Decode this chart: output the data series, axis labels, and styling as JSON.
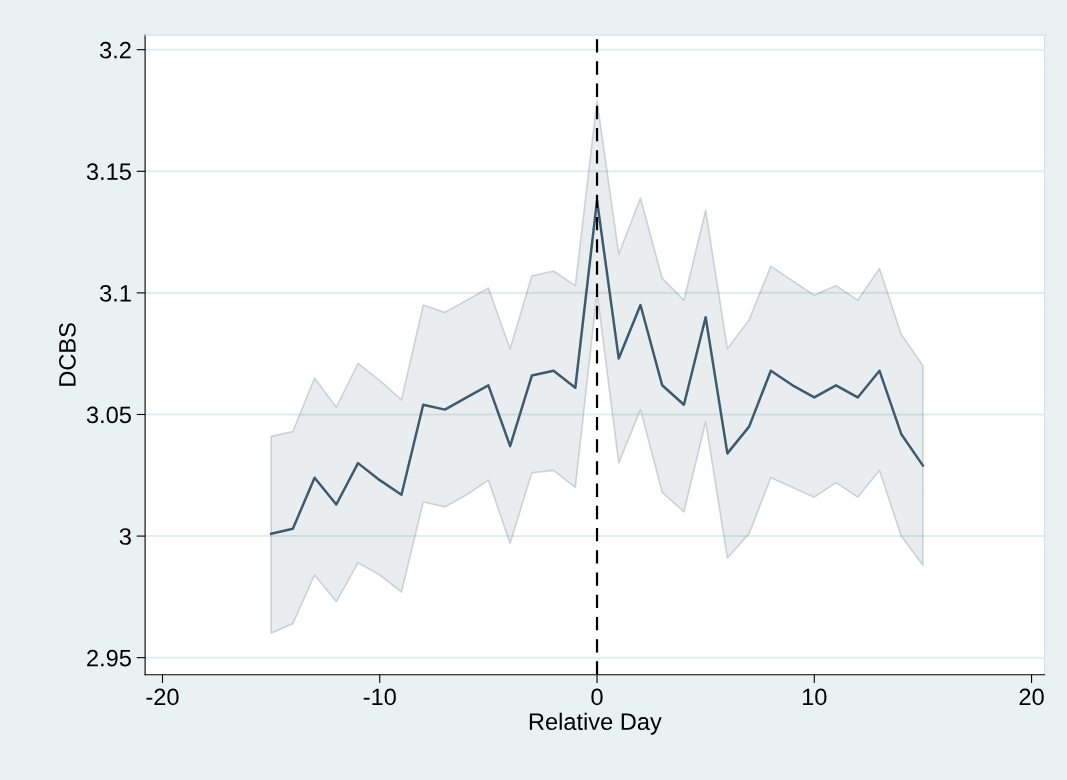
{
  "chart_data": {
    "type": "line",
    "xlabel": "Relative Day",
    "ylabel": "DCBS",
    "x": [
      -15,
      -14,
      -13,
      -12,
      -11,
      -10,
      -9,
      -8,
      -7,
      -6,
      -5,
      -4,
      -3,
      -2,
      -1,
      0,
      1,
      2,
      3,
      4,
      5,
      6,
      7,
      8,
      9,
      10,
      11,
      12,
      13,
      14,
      15
    ],
    "series": [
      {
        "color": "#3d5a6e",
        "values": [
          3.001,
          3.003,
          3.024,
          3.013,
          3.03,
          3.023,
          3.017,
          3.054,
          3.052,
          3.057,
          3.062,
          3.037,
          3.066,
          3.068,
          3.061,
          3.138,
          3.073,
          3.095,
          3.062,
          3.054,
          3.09,
          3.034,
          3.045,
          3.068,
          3.062,
          3.057,
          3.062,
          3.057,
          3.068,
          3.042,
          3.029
        ],
        "upper": [
          3.041,
          3.043,
          3.065,
          3.053,
          3.071,
          3.064,
          3.056,
          3.095,
          3.092,
          3.097,
          3.102,
          3.077,
          3.107,
          3.109,
          3.103,
          3.179,
          3.116,
          3.139,
          3.106,
          3.097,
          3.134,
          3.077,
          3.089,
          3.111,
          3.105,
          3.099,
          3.103,
          3.097,
          3.11,
          3.083,
          3.07
        ],
        "lower": [
          2.96,
          2.964,
          2.984,
          2.973,
          2.989,
          2.984,
          2.977,
          3.014,
          3.012,
          3.017,
          3.023,
          2.997,
          3.026,
          3.027,
          3.02,
          3.1,
          3.03,
          3.052,
          3.018,
          3.01,
          3.047,
          2.991,
          3.001,
          3.024,
          3.02,
          3.016,
          3.022,
          3.016,
          3.027,
          3.0,
          2.988
        ]
      }
    ],
    "xlim": [
      -20.8,
      20.6
    ],
    "xticks": [
      -20,
      -10,
      0,
      10,
      20
    ],
    "ylim": [
      2.943,
      3.206
    ],
    "yticks": [
      2.95,
      {
        "value": 3.0,
        "label": "3"
      },
      3.05,
      3.1,
      3.15,
      3.2
    ],
    "ref_lines": [
      {
        "axis": "x",
        "value": 0,
        "color": "#000000",
        "line_style": "dashed"
      }
    ],
    "grid": "y",
    "marker": "none",
    "line_style": "solid"
  }
}
